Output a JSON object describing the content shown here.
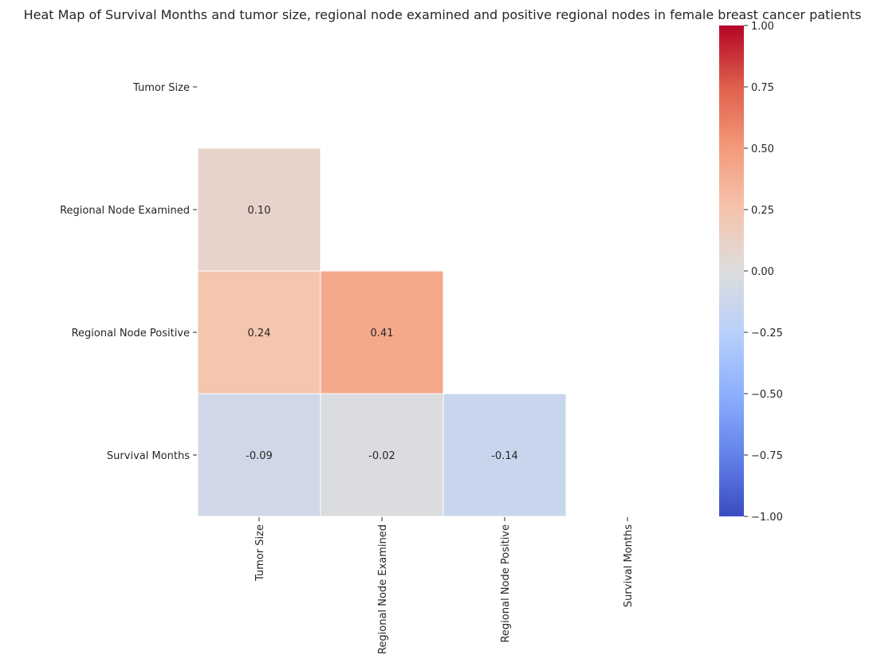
{
  "chart_data": {
    "type": "heatmap",
    "title": "Heat Map of Survival Months and tumor size, regional node examined and positive regional nodes in female breast cancer patients",
    "xlabel": "",
    "ylabel": "",
    "rows": [
      "Tumor Size",
      "Regional Node Examined",
      "Regional Node Positive",
      "Survival Months"
    ],
    "columns": [
      "Tumor Size",
      "Regional Node Examined",
      "Regional Node Positive",
      "Survival Months"
    ],
    "values": [
      [
        null,
        null,
        null,
        null
      ],
      [
        0.1,
        null,
        null,
        null
      ],
      [
        0.24,
        0.41,
        null,
        null
      ],
      [
        -0.09,
        -0.02,
        -0.14,
        null
      ]
    ],
    "value_labels": [
      [
        null,
        null,
        null,
        null
      ],
      [
        "0.10",
        null,
        null,
        null
      ],
      [
        "0.24",
        "0.41",
        null,
        null
      ],
      [
        "-0.09",
        "-0.02",
        "-0.14",
        null
      ]
    ],
    "masked": "upper-triangle-and-diagonal",
    "colormap": "coolwarm",
    "vmin": -1.0,
    "vmax": 1.0,
    "colorbar_ticks": [
      "1.00",
      "0.75",
      "0.50",
      "0.25",
      "0.00",
      "−0.25",
      "−0.50",
      "−0.75",
      "−1.00"
    ],
    "colorbar_values": [
      1.0,
      0.75,
      0.5,
      0.25,
      0.0,
      -0.25,
      -0.5,
      -0.75,
      -1.0
    ],
    "grid": false,
    "colorbar_placement": "right",
    "cell_border_color": "#ffffff"
  }
}
